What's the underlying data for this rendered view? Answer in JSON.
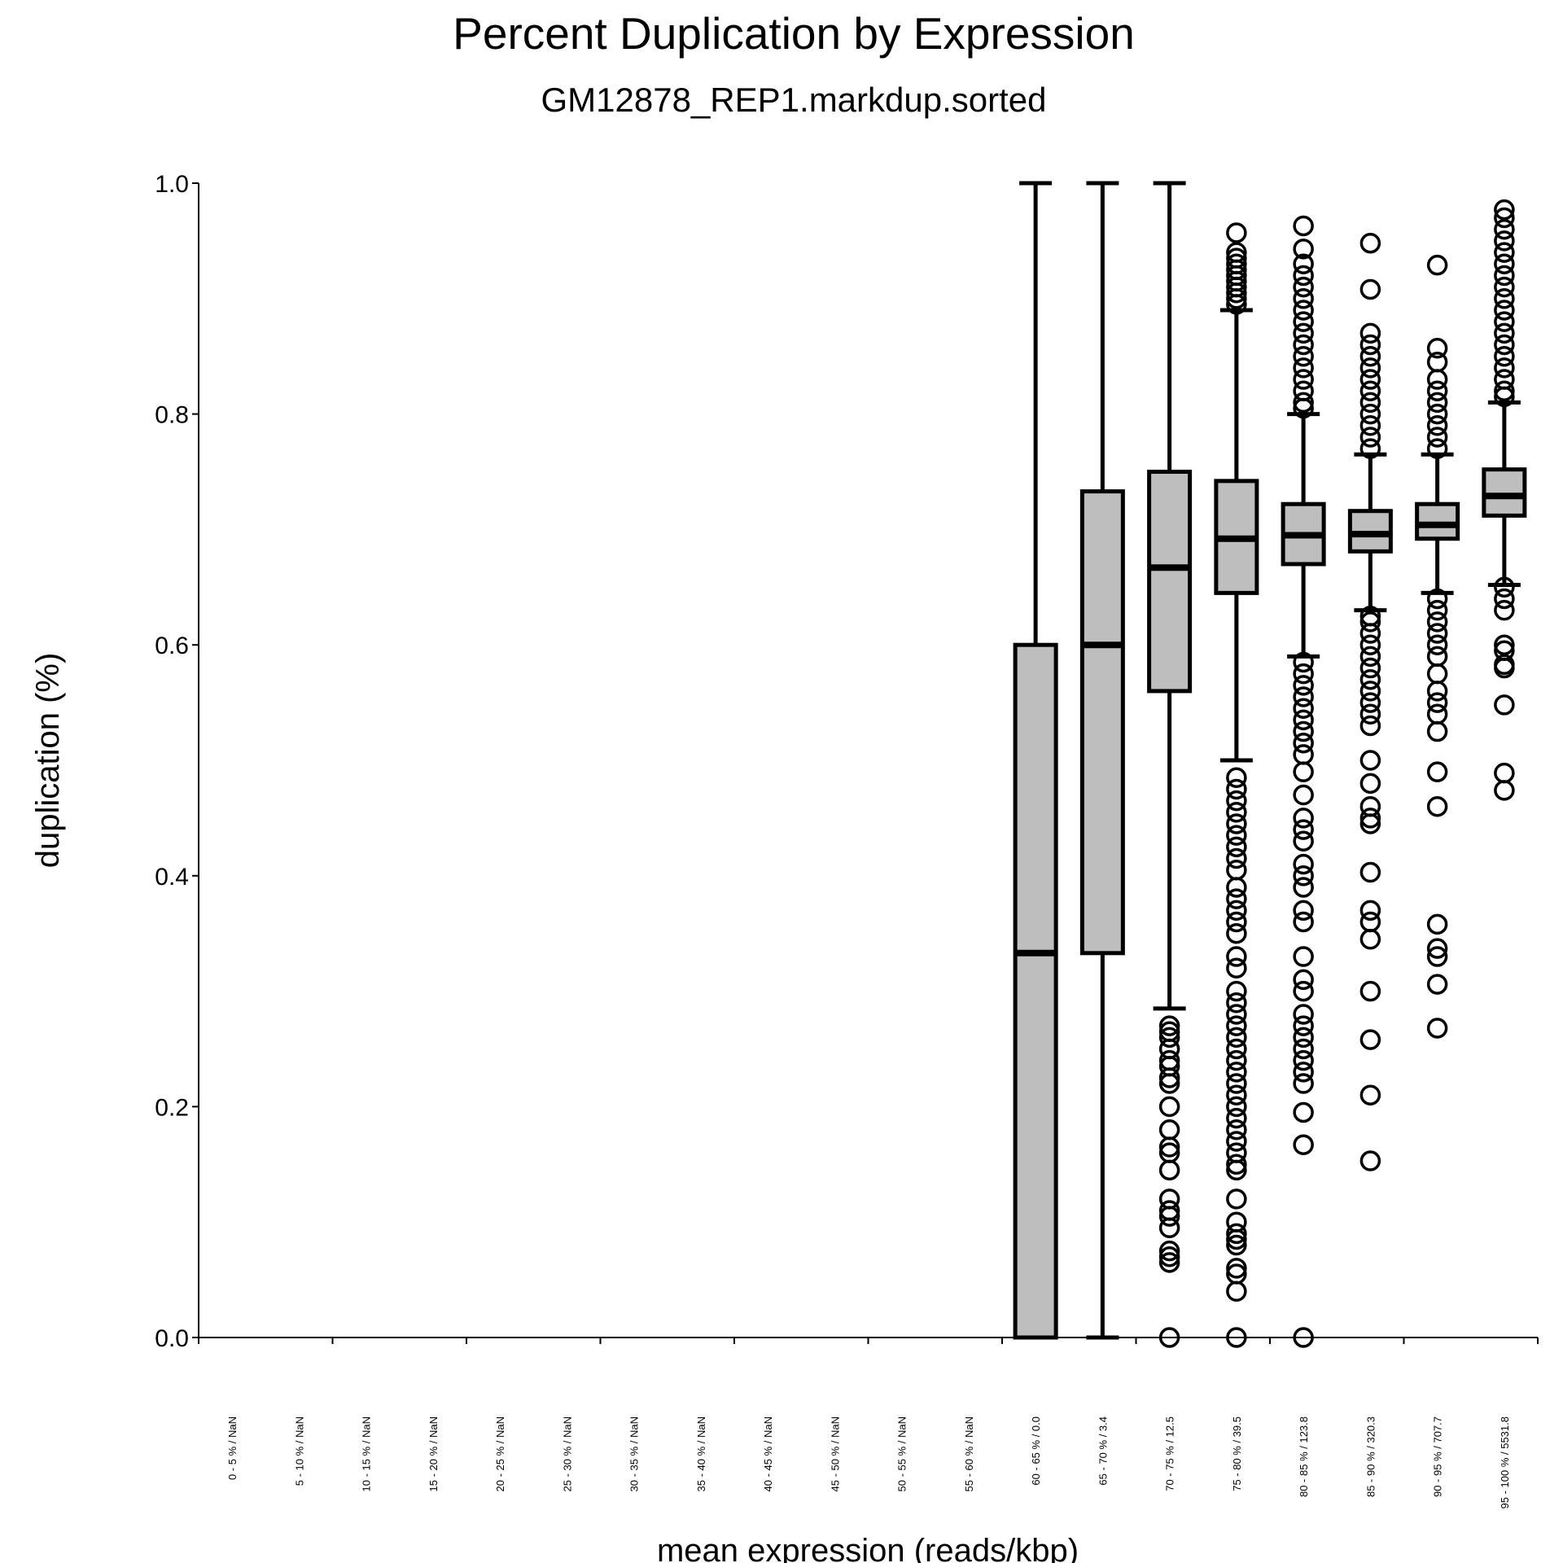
{
  "chart_data": {
    "type": "box",
    "title": "Percent Duplication by Expression",
    "subtitle": "GM12878_REP1.markdup.sorted",
    "xlabel": "mean expression (reads/kbp)",
    "ylabel": "duplication (%)",
    "ylim": [
      0,
      1
    ],
    "yticks": [
      "0.0",
      "0.2",
      "0.4",
      "0.6",
      "0.8",
      "1.0"
    ],
    "grid": false,
    "colors": {
      "box_fill": "#bebebe",
      "stroke": "#000000"
    },
    "categories": [
      "0 - 5 % / NaN",
      "5 - 10 % / NaN",
      "10 - 15 % / NaN",
      "15 - 20 % / NaN",
      "20 - 25 % / NaN",
      "25 - 30 % / NaN",
      "30 - 35 % / NaN",
      "35 - 40 % / NaN",
      "40 - 45 % / NaN",
      "45 - 50 % / NaN",
      "50 - 55 % / NaN",
      "55 - 60 % / NaN",
      "60 - 65 % / 0.0",
      "65 - 70 % / 3.4",
      "70 - 75 % / 12.5",
      "75 - 80 % / 39.5",
      "80 - 85 % / 123.8",
      "85 - 90 % / 320.3",
      "90 - 95 % / 707.7",
      "95 - 100 % / 5531.8"
    ],
    "boxes": [
      {
        "category": "60 - 65 % / 0.0",
        "low": 0.0,
        "q1": 0.0,
        "median": 0.333,
        "q3": 0.6,
        "high": 1.0,
        "outliers": []
      },
      {
        "category": "65 - 70 % / 3.4",
        "low": 0.0,
        "q1": 0.333,
        "median": 0.6,
        "q3": 0.733,
        "high": 1.0,
        "outliers": []
      },
      {
        "category": "70 - 75 % / 12.5",
        "low": 0.285,
        "q1": 0.56,
        "median": 0.667,
        "q3": 0.75,
        "high": 1.0,
        "outliers": [
          0.27,
          0.265,
          0.26,
          0.25,
          0.24,
          0.235,
          0.225,
          0.22,
          0.2,
          0.18,
          0.165,
          0.16,
          0.145,
          0.12,
          0.11,
          0.105,
          0.095,
          0.075,
          0.07,
          0.065,
          0.0
        ]
      },
      {
        "category": "75 - 80 % / 39.5",
        "low": 0.5,
        "q1": 0.645,
        "median": 0.692,
        "q3": 0.742,
        "high": 0.89,
        "outliers": [
          0.957,
          0.94,
          0.935,
          0.93,
          0.925,
          0.92,
          0.915,
          0.91,
          0.905,
          0.9,
          0.895,
          0.485,
          0.475,
          0.465,
          0.455,
          0.445,
          0.435,
          0.425,
          0.415,
          0.405,
          0.39,
          0.38,
          0.37,
          0.36,
          0.35,
          0.33,
          0.32,
          0.3,
          0.29,
          0.28,
          0.27,
          0.26,
          0.25,
          0.24,
          0.23,
          0.22,
          0.21,
          0.2,
          0.19,
          0.18,
          0.17,
          0.16,
          0.15,
          0.145,
          0.12,
          0.1,
          0.09,
          0.085,
          0.08,
          0.06,
          0.055,
          0.04,
          0.0
        ]
      },
      {
        "category": "80 - 85 % / 123.8",
        "low": 0.59,
        "q1": 0.67,
        "median": 0.695,
        "q3": 0.722,
        "high": 0.8,
        "outliers": [
          0.963,
          0.943,
          0.93,
          0.92,
          0.91,
          0.9,
          0.89,
          0.88,
          0.87,
          0.86,
          0.85,
          0.84,
          0.83,
          0.82,
          0.81,
          0.805,
          0.585,
          0.575,
          0.565,
          0.555,
          0.545,
          0.535,
          0.525,
          0.515,
          0.505,
          0.49,
          0.47,
          0.45,
          0.44,
          0.43,
          0.41,
          0.4,
          0.39,
          0.37,
          0.36,
          0.33,
          0.31,
          0.3,
          0.28,
          0.27,
          0.26,
          0.25,
          0.24,
          0.23,
          0.22,
          0.195,
          0.167,
          0.0
        ]
      },
      {
        "category": "85 - 90 % / 320.3",
        "low": 0.63,
        "q1": 0.681,
        "median": 0.696,
        "q3": 0.716,
        "high": 0.765,
        "outliers": [
          0.948,
          0.908,
          0.87,
          0.86,
          0.85,
          0.84,
          0.83,
          0.82,
          0.81,
          0.8,
          0.79,
          0.78,
          0.77,
          0.625,
          0.62,
          0.61,
          0.6,
          0.59,
          0.58,
          0.57,
          0.56,
          0.55,
          0.54,
          0.53,
          0.5,
          0.48,
          0.46,
          0.45,
          0.445,
          0.403,
          0.37,
          0.36,
          0.345,
          0.3,
          0.258,
          0.21,
          0.153
        ]
      },
      {
        "category": "90 - 95 % / 707.7",
        "low": 0.645,
        "q1": 0.692,
        "median": 0.704,
        "q3": 0.722,
        "high": 0.765,
        "outliers": [
          0.929,
          0.857,
          0.845,
          0.83,
          0.82,
          0.81,
          0.8,
          0.79,
          0.78,
          0.77,
          0.64,
          0.63,
          0.62,
          0.61,
          0.6,
          0.59,
          0.575,
          0.56,
          0.55,
          0.54,
          0.525,
          0.49,
          0.46,
          0.358,
          0.337,
          0.33,
          0.306,
          0.268
        ]
      },
      {
        "category": "95 - 100 % / 5531.8",
        "low": 0.652,
        "q1": 0.712,
        "median": 0.729,
        "q3": 0.752,
        "high": 0.81,
        "outliers": [
          0.977,
          0.97,
          0.96,
          0.95,
          0.94,
          0.93,
          0.92,
          0.91,
          0.9,
          0.89,
          0.88,
          0.87,
          0.86,
          0.85,
          0.84,
          0.83,
          0.82,
          0.815,
          0.65,
          0.64,
          0.63,
          0.6,
          0.595,
          0.583,
          0.58,
          0.548,
          0.489,
          0.474
        ]
      }
    ]
  }
}
